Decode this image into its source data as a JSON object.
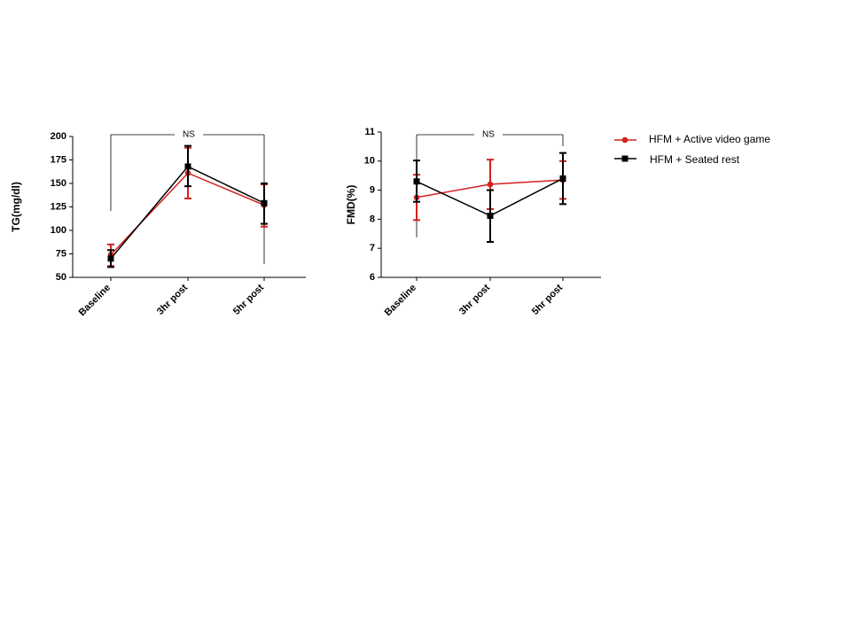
{
  "chart_data": [
    {
      "type": "line",
      "ylabel": "TG(mg/dl)",
      "xlabel": "",
      "categories": [
        "Baseline",
        "3hr post",
        "5hr post"
      ],
      "ylim": [
        50,
        200
      ],
      "yticks": [
        50,
        75,
        100,
        125,
        150,
        175,
        200
      ],
      "annotation": "NS",
      "series": [
        {
          "name": "HFM + Active video game",
          "color": "#d42020",
          "marker": "circle",
          "values": [
            74,
            161,
            127
          ],
          "err_low": [
            62,
            134,
            104
          ],
          "err_high": [
            85,
            188,
            149
          ]
        },
        {
          "name": "HFM + Seated rest",
          "color": "#000000",
          "marker": "square",
          "values": [
            70,
            168,
            129
          ],
          "err_low": [
            61,
            147,
            107
          ],
          "err_high": [
            79,
            190,
            150
          ]
        }
      ]
    },
    {
      "type": "line",
      "ylabel": "FMD(%)",
      "xlabel": "",
      "categories": [
        "Baseline",
        "3hr post",
        "5hr post"
      ],
      "ylim": [
        6,
        11
      ],
      "yticks": [
        6,
        7,
        8,
        9,
        10,
        11
      ],
      "annotation": "NS",
      "series": [
        {
          "name": "HFM + Active video game",
          "color": "#d42020",
          "marker": "circle",
          "values": [
            8.75,
            9.2,
            9.35
          ],
          "err_low": [
            7.97,
            8.35,
            8.7
          ],
          "err_high": [
            9.53,
            10.05,
            10.0
          ]
        },
        {
          "name": "HFM + Seated rest",
          "color": "#000000",
          "marker": "square",
          "values": [
            9.3,
            8.12,
            9.4
          ],
          "err_low": [
            8.6,
            7.22,
            8.52
          ],
          "err_high": [
            10.02,
            9.0,
            10.28
          ]
        }
      ]
    }
  ],
  "legend": {
    "placement": "right",
    "items": [
      {
        "label": "HFM + Active video game",
        "color": "#d42020",
        "marker": "circle"
      },
      {
        "label": "HFM + Seated rest",
        "color": "#000000",
        "marker": "square"
      }
    ]
  }
}
